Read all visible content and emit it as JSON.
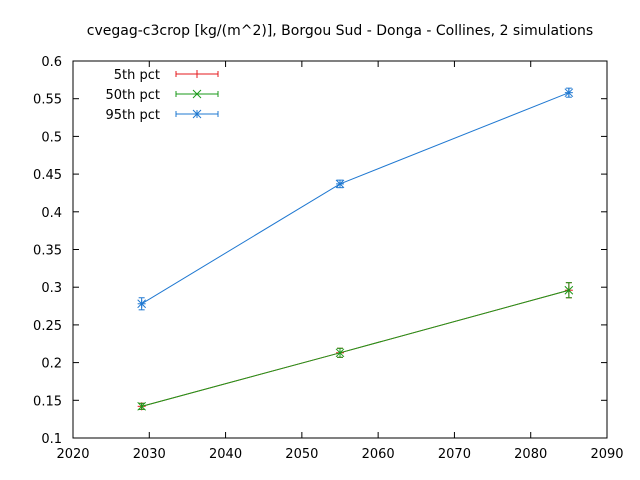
{
  "chart_data": {
    "type": "line",
    "title": "cvegag-c3crop [kg/(m^2)], Borgou Sud - Donga - Collines, 2 simulations",
    "xlabel": "",
    "ylabel": "",
    "xlim": [
      2020,
      2090
    ],
    "ylim": [
      0.1,
      0.6
    ],
    "x_ticks": [
      "2020",
      "2030",
      "2040",
      "2050",
      "2060",
      "2070",
      "2080",
      "2090"
    ],
    "y_ticks": [
      "0.1",
      "0.15",
      "0.2",
      "0.25",
      "0.3",
      "0.35",
      "0.4",
      "0.45",
      "0.5",
      "0.55",
      "0.6"
    ],
    "grid": false,
    "legend_position": "top-left",
    "series": [
      {
        "name": "5th pct",
        "color": "#e41a1c",
        "marker": "plus",
        "x": [
          2029,
          2055,
          2085
        ],
        "y": [
          0.142,
          0.213,
          0.296
        ],
        "err": [
          0.004,
          0.006,
          0.01
        ]
      },
      {
        "name": "50th pct",
        "color": "#1a9a1a",
        "marker": "cross",
        "x": [
          2029,
          2055,
          2085
        ],
        "y": [
          0.142,
          0.213,
          0.296
        ],
        "err": [
          0.004,
          0.006,
          0.01
        ]
      },
      {
        "name": "95th pct",
        "color": "#1f78d1",
        "marker": "star",
        "x": [
          2029,
          2055,
          2085
        ],
        "y": [
          0.278,
          0.437,
          0.558
        ],
        "err": [
          0.008,
          0.005,
          0.006
        ]
      }
    ]
  }
}
